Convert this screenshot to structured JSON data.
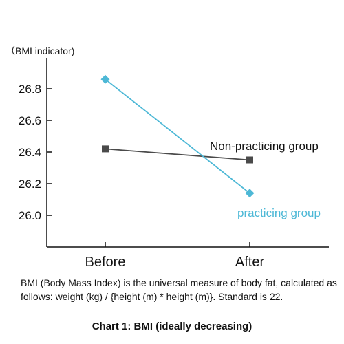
{
  "chart_data": {
    "type": "line",
    "title": "Chart 1: BMI (ideally decreasing)",
    "ylabel": "（BMI indicator)",
    "xlabel": "",
    "categories": [
      "Before",
      "After"
    ],
    "ylim": [
      25.8,
      27.05
    ],
    "yticks": [
      "26.0",
      "26.2",
      "26.4",
      "26.6",
      "26.8"
    ],
    "series": [
      {
        "name": "Non-practicing group",
        "values": [
          26.42,
          26.35
        ],
        "color": "#4a4a4a",
        "marker": "square"
      },
      {
        "name": "practicing group",
        "values": [
          26.86,
          26.14
        ],
        "color": "#4db8d6",
        "marker": "diamond"
      }
    ]
  },
  "caption": "BMI (Body Mass Index) is the universal measure of body fat, calculated as follows: weight (kg) / {height (m) * height (m)}. Standard is 22."
}
